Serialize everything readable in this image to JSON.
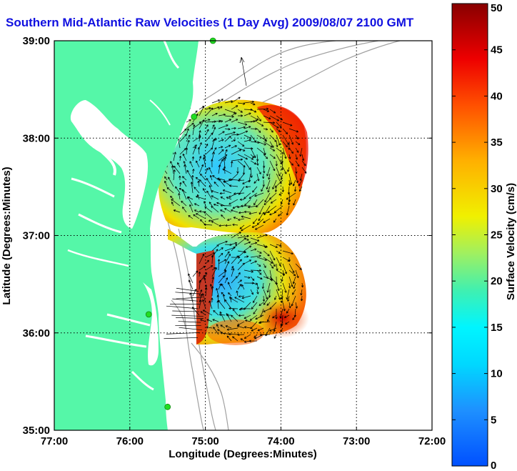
{
  "title": "Southern Mid-Atlantic Raw Velocities (1 Day Avg) 2009/08/07 2100 GMT",
  "x_axis": {
    "label": "Longitude (Degrees:Minutes)",
    "ticks": [
      {
        "value": -77,
        "label": "77:00"
      },
      {
        "value": -76,
        "label": "76:00"
      },
      {
        "value": -75,
        "label": "75:00"
      },
      {
        "value": -74,
        "label": "74:00"
      },
      {
        "value": -73,
        "label": "73:00"
      },
      {
        "value": -72,
        "label": "72:00"
      }
    ]
  },
  "y_axis": {
    "label": "Latitude (Degrees:Minutes)",
    "ticks": [
      {
        "value": 35,
        "label": "35:00"
      },
      {
        "value": 36,
        "label": "36:00"
      },
      {
        "value": 37,
        "label": "37:00"
      },
      {
        "value": 38,
        "label": "38:00"
      },
      {
        "value": 39,
        "label": "39:00"
      }
    ]
  },
  "colorbar": {
    "label": "Surface Velocity (cm/s)",
    "min": 0,
    "max": 50,
    "ticks": [
      "0",
      "5",
      "10",
      "15",
      "20",
      "25",
      "30",
      "35",
      "40",
      "45",
      "50"
    ]
  },
  "colors": {
    "land": "#55f7a8",
    "title": "#1010e0",
    "grid": "#000000",
    "bathymetry": "#a0a0a0",
    "station": "#22dd22"
  },
  "chart_data": {
    "type": "heatmap",
    "title": "Southern Mid-Atlantic Raw Velocities (1 Day Avg) 2009/08/07 2100 GMT",
    "xlabel": "Longitude (Degrees:Minutes)",
    "ylabel": "Latitude (Degrees:Minutes)",
    "xlim": [
      -77,
      -72
    ],
    "ylim": [
      35,
      39
    ],
    "colorbar_label": "Surface Velocity (cm/s)",
    "colorbar_range": [
      0,
      50
    ],
    "grid": true,
    "stations": [
      {
        "lon": -74.9,
        "lat": 39.0
      },
      {
        "lon": -75.15,
        "lat": 38.22
      },
      {
        "lon": -75.75,
        "lat": 36.19
      },
      {
        "lon": -75.5,
        "lat": 35.24
      }
    ]
  }
}
